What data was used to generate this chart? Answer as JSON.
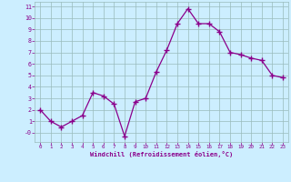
{
  "x": [
    0,
    1,
    2,
    3,
    4,
    5,
    6,
    7,
    8,
    9,
    10,
    11,
    12,
    13,
    14,
    15,
    16,
    17,
    18,
    19,
    20,
    21,
    22,
    23
  ],
  "y": [
    2.0,
    1.0,
    0.5,
    1.0,
    1.5,
    3.5,
    3.2,
    2.5,
    -0.3,
    2.7,
    3.0,
    5.3,
    7.2,
    9.5,
    10.8,
    9.5,
    9.5,
    8.8,
    7.0,
    6.8,
    6.5,
    6.3,
    5.0,
    4.8
  ],
  "line_color": "#8b008b",
  "marker": "+",
  "bg_color": "#cceeff",
  "grid_color": "#99bbbb",
  "tick_color": "#8b008b",
  "xlabel": "Windchill (Refroidissement éolien,°C)",
  "ylim": [
    -0.8,
    11.4
  ],
  "xlim": [
    -0.5,
    23.5
  ],
  "yticks": [
    0,
    1,
    2,
    3,
    4,
    5,
    6,
    7,
    8,
    9,
    10,
    11
  ],
  "xticks": [
    0,
    1,
    2,
    3,
    4,
    5,
    6,
    7,
    8,
    9,
    10,
    11,
    12,
    13,
    14,
    15,
    16,
    17,
    18,
    19,
    20,
    21,
    22,
    23
  ],
  "ytick_labels": [
    "-0",
    "1",
    "2",
    "3",
    "4",
    "5",
    "6",
    "7",
    "8",
    "9",
    "10",
    "11"
  ],
  "xtick_labels": [
    "0",
    "1",
    "2",
    "3",
    "4",
    "5",
    "6",
    "7",
    "8",
    "9",
    "10",
    "11",
    "12",
    "13",
    "14",
    "15",
    "16",
    "17",
    "18",
    "19",
    "20",
    "21",
    "22",
    "23"
  ]
}
